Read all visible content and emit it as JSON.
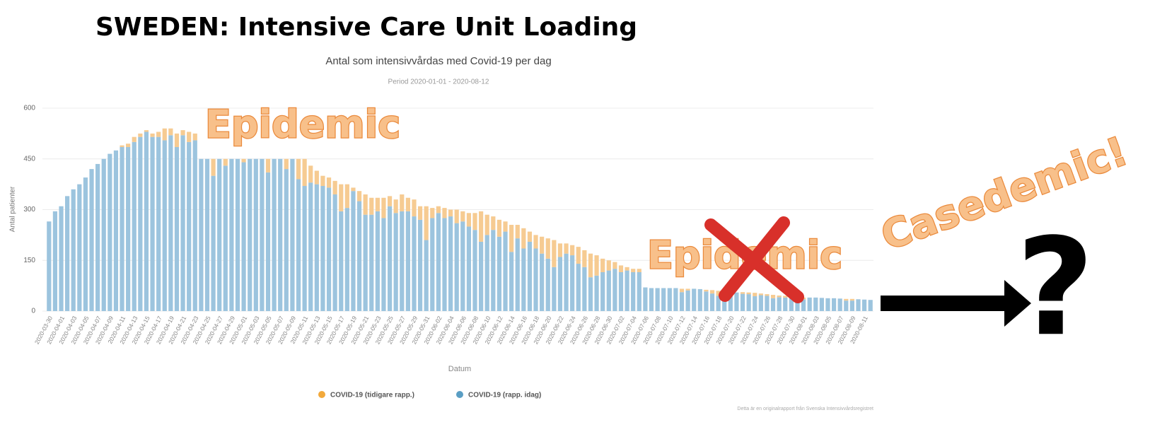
{
  "slide_title": "SWEDEN: Intensive Care Unit Loading",
  "annotations": [
    "Epidemic",
    "Epidemic",
    "Casedemic!",
    "?"
  ],
  "chart_data": {
    "type": "stacked_bar",
    "title": "Antal som intensivvårdas med Covid-19 per dag",
    "subtitle": "Period 2020-01-01 - 2020-08-12",
    "x_label": "Datum",
    "y_label": "Antal patienter",
    "source": "Detta är en originalrapport från Svenska Intensivvårdsregistret",
    "ylim": [
      0,
      600
    ],
    "yticks": [
      0,
      150,
      300,
      450,
      600
    ],
    "grid": true,
    "categories": [
      "2020-03-30",
      null,
      "2020-04-01",
      null,
      "2020-04-03",
      null,
      "2020-04-05",
      null,
      "2020-04-07",
      null,
      "2020-04-09",
      null,
      "2020-04-11",
      null,
      "2020-04-13",
      null,
      "2020-04-15",
      null,
      "2020-04-17",
      null,
      "2020-04-19",
      null,
      "2020-04-21",
      null,
      "2020-04-23",
      null,
      "2020-04-25",
      null,
      "2020-04-27",
      null,
      "2020-04-29",
      null,
      "2020-05-01",
      null,
      "2020-05-03",
      null,
      "2020-05-05",
      null,
      "2020-05-07",
      null,
      "2020-05-09",
      null,
      "2020-05-11",
      null,
      "2020-05-13",
      null,
      "2020-05-15",
      null,
      "2020-05-17",
      null,
      "2020-05-19",
      null,
      "2020-05-21",
      null,
      "2020-05-23",
      null,
      "2020-05-25",
      null,
      "2020-05-27",
      null,
      "2020-05-29",
      null,
      "2020-05-31",
      null,
      "2020-06-02",
      null,
      "2020-06-04",
      null,
      "2020-06-06",
      null,
      "2020-06-08",
      null,
      "2020-06-10",
      null,
      "2020-06-12",
      null,
      "2020-06-14",
      null,
      "2020-06-16",
      null,
      "2020-06-18",
      null,
      "2020-06-20",
      null,
      "2020-06-22",
      null,
      "2020-06-24",
      null,
      "2020-06-26",
      null,
      "2020-06-28",
      null,
      "2020-06-30",
      null,
      "2020-07-02",
      null,
      "2020-07-04",
      null,
      "2020-07-06",
      null,
      "2020-07-08",
      null,
      "2020-07-10",
      null,
      "2020-07-12",
      null,
      "2020-07-14",
      null,
      "2020-07-16",
      null,
      "2020-07-18",
      null,
      "2020-07-20",
      null,
      "2020-07-22",
      null,
      "2020-07-24",
      null,
      "2020-07-26",
      null,
      "2020-07-28",
      null,
      "2020-07-30",
      null,
      "2020-08-01",
      null,
      "2020-08-03",
      null,
      "2020-08-05",
      null,
      "2020-08-07",
      null,
      "2020-08-09",
      null,
      "2020-08-11",
      null
    ],
    "series": [
      {
        "name": "COVID-19 (rapp. idag)",
        "color": "#9cc4de",
        "legend_color": "#5a9ec4",
        "values": [
          265,
          295,
          310,
          340,
          360,
          375,
          395,
          420,
          435,
          450,
          465,
          475,
          485,
          485,
          500,
          515,
          530,
          515,
          515,
          505,
          520,
          485,
          520,
          500,
          505,
          450,
          450,
          400,
          450,
          430,
          450,
          450,
          440,
          450,
          450,
          450,
          410,
          450,
          450,
          420,
          450,
          390,
          370,
          380,
          375,
          370,
          365,
          345,
          295,
          305,
          355,
          325,
          285,
          285,
          295,
          275,
          310,
          290,
          295,
          295,
          280,
          270,
          210,
          275,
          290,
          275,
          280,
          260,
          265,
          250,
          240,
          205,
          225,
          240,
          220,
          235,
          175,
          215,
          185,
          205,
          185,
          170,
          155,
          130,
          160,
          170,
          165,
          140,
          130,
          100,
          105,
          115,
          120,
          125,
          115,
          120,
          115,
          115,
          70,
          68,
          68,
          68,
          68,
          68,
          56,
          61,
          66,
          65,
          58,
          52,
          45,
          38,
          45,
          55,
          51,
          50,
          44,
          47,
          45,
          38,
          41,
          40,
          39,
          37,
          35,
          40,
          40,
          39,
          38,
          38,
          37,
          31,
          31,
          35,
          34,
          33
        ]
      },
      {
        "name": "COVID-19 (tidigare rapp.)",
        "color": "#f6cb92",
        "legend_color": "#f2a93b",
        "values": [
          0,
          0,
          0,
          0,
          0,
          0,
          0,
          0,
          0,
          0,
          0,
          0,
          5,
          10,
          15,
          10,
          5,
          10,
          15,
          35,
          20,
          40,
          15,
          30,
          20,
          0,
          0,
          50,
          0,
          20,
          0,
          0,
          10,
          0,
          0,
          0,
          40,
          0,
          0,
          30,
          0,
          60,
          80,
          50,
          40,
          30,
          30,
          40,
          80,
          70,
          10,
          30,
          60,
          50,
          40,
          60,
          30,
          40,
          50,
          40,
          50,
          40,
          100,
          30,
          20,
          30,
          20,
          40,
          30,
          40,
          50,
          90,
          60,
          40,
          50,
          30,
          80,
          40,
          60,
          30,
          40,
          50,
          60,
          80,
          40,
          30,
          30,
          50,
          50,
          70,
          60,
          40,
          30,
          20,
          20,
          10,
          10,
          10,
          0,
          0,
          0,
          0,
          0,
          0,
          10,
          5,
          0,
          0,
          5,
          10,
          15,
          20,
          10,
          0,
          5,
          5,
          10,
          5,
          5,
          10,
          5,
          5,
          5,
          5,
          5,
          0,
          0,
          0,
          0,
          0,
          0,
          5,
          5,
          0,
          0,
          0
        ]
      }
    ],
    "legend_order": [
      1,
      0
    ]
  }
}
